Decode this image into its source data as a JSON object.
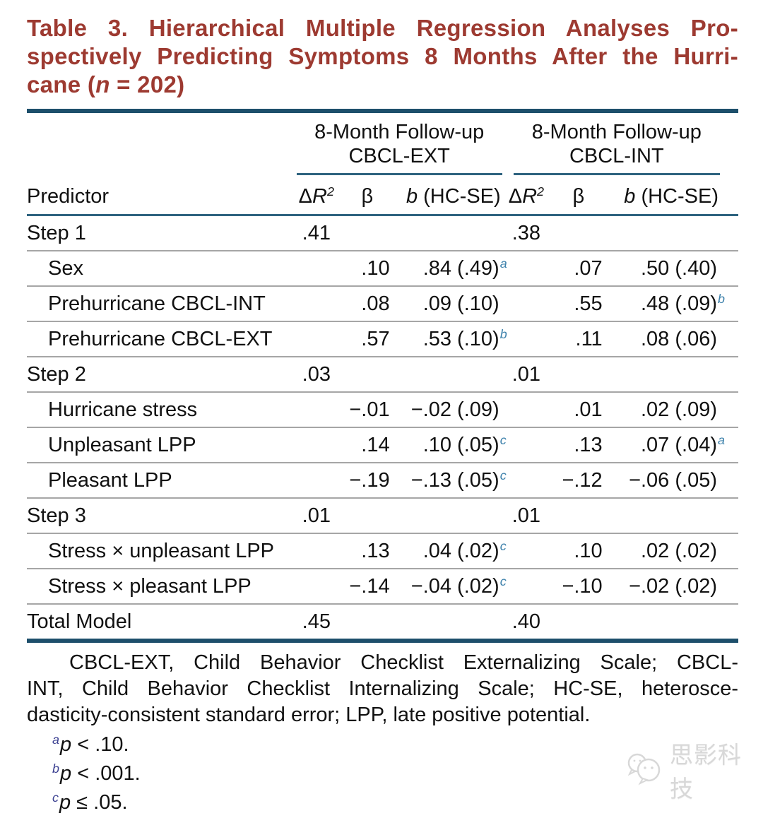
{
  "title": {
    "line1": "Table 3. Hierarchical Multiple Regression Analyses Pro-",
    "line2": "spectively Predicting Symptoms 8 Months After the Hurri-",
    "line3_pre": "cane (",
    "line3_n": "n",
    "line3_post": " = 202)"
  },
  "colors": {
    "title_red": "#9d3a31",
    "rule_teal_thick": "#1d4f6b",
    "rule_teal_thin": "#2e637f",
    "row_divider_gray": "#a6a6a6",
    "table_sup_blue": "#3d81ab",
    "footnote_sup_navy": "#3c4192",
    "watermark_gray": "#d8d8d8"
  },
  "table": {
    "spanners": [
      {
        "line1": "8-Month Follow-up",
        "line2": "CBCL-EXT"
      },
      {
        "line1": "8-Month Follow-up",
        "line2": "CBCL-INT"
      }
    ],
    "subheaders": {
      "predictor": "Predictor",
      "delta": "Δ",
      "r": "R",
      "r_sup": "2",
      "beta": "β",
      "b": "b",
      "b_rest": " (HC-SE)"
    },
    "rows": [
      {
        "label": "Step 1",
        "indent": false,
        "ext": {
          "dr2": ".41",
          "beta": "",
          "b": "",
          "sup": ""
        },
        "int": {
          "dr2": ".38",
          "beta": "",
          "b": "",
          "sup": ""
        }
      },
      {
        "label": "Sex",
        "indent": true,
        "ext": {
          "dr2": "",
          "beta": ".10",
          "b": ".84 (.49)",
          "sup": "a"
        },
        "int": {
          "dr2": "",
          "beta": ".07",
          "b": ".50 (.40)",
          "sup": ""
        }
      },
      {
        "label": "Prehurricane CBCL-INT",
        "indent": true,
        "ext": {
          "dr2": "",
          "beta": ".08",
          "b": ".09 (.10)",
          "sup": ""
        },
        "int": {
          "dr2": "",
          "beta": ".55",
          "b": ".48 (.09)",
          "sup": "b"
        }
      },
      {
        "label": "Prehurricane CBCL-EXT",
        "indent": true,
        "ext": {
          "dr2": "",
          "beta": ".57",
          "b": ".53 (.10)",
          "sup": "b"
        },
        "int": {
          "dr2": "",
          "beta": ".11",
          "b": ".08 (.06)",
          "sup": ""
        }
      },
      {
        "label": "Step 2",
        "indent": false,
        "ext": {
          "dr2": ".03",
          "beta": "",
          "b": "",
          "sup": ""
        },
        "int": {
          "dr2": ".01",
          "beta": "",
          "b": "",
          "sup": ""
        }
      },
      {
        "label": "Hurricane stress",
        "indent": true,
        "ext": {
          "dr2": "",
          "beta": "−.01",
          "b": "−.02 (.09)",
          "sup": ""
        },
        "int": {
          "dr2": "",
          "beta": ".01",
          "b": ".02 (.09)",
          "sup": ""
        }
      },
      {
        "label": "Unpleasant LPP",
        "indent": true,
        "ext": {
          "dr2": "",
          "beta": ".14",
          "b": ".10 (.05)",
          "sup": "c"
        },
        "int": {
          "dr2": "",
          "beta": ".13",
          "b": ".07 (.04)",
          "sup": "a"
        }
      },
      {
        "label": "Pleasant LPP",
        "indent": true,
        "ext": {
          "dr2": "",
          "beta": "−.19",
          "b": "−.13 (.05)",
          "sup": "c"
        },
        "int": {
          "dr2": "",
          "beta": "−.12",
          "b": "−.06 (.05)",
          "sup": ""
        }
      },
      {
        "label": "Step 3",
        "indent": false,
        "ext": {
          "dr2": ".01",
          "beta": "",
          "b": "",
          "sup": ""
        },
        "int": {
          "dr2": ".01",
          "beta": "",
          "b": "",
          "sup": ""
        }
      },
      {
        "label": "Stress × unpleasant LPP",
        "indent": true,
        "ext": {
          "dr2": "",
          "beta": ".13",
          "b": ".04 (.02)",
          "sup": "c"
        },
        "int": {
          "dr2": "",
          "beta": ".10",
          "b": ".02 (.02)",
          "sup": ""
        }
      },
      {
        "label": "Stress × pleasant LPP",
        "indent": true,
        "ext": {
          "dr2": "",
          "beta": "−.14",
          "b": "−.04 (.02)",
          "sup": "c"
        },
        "int": {
          "dr2": "",
          "beta": "−.10",
          "b": "−.02 (.02)",
          "sup": ""
        }
      },
      {
        "label": "Total Model",
        "indent": false,
        "ext": {
          "dr2": ".45",
          "beta": "",
          "b": "",
          "sup": ""
        },
        "int": {
          "dr2": ".40",
          "beta": "",
          "b": "",
          "sup": ""
        }
      }
    ]
  },
  "footnote": {
    "line1": "CBCL-EXT, Child Behavior Checklist Externalizing Scale; CBCL-",
    "line2": "INT, Child Behavior Checklist Internalizing Scale; HC-SE, heterosce-",
    "line3": "dasticity-consistent standard error; LPP, late positive potential.",
    "notes": [
      {
        "sup": "a",
        "p": "p",
        "text": " < .10."
      },
      {
        "sup": "b",
        "p": "p",
        "text": " < .001."
      },
      {
        "sup": "c",
        "p": "p",
        "text": " ≤ .05."
      }
    ]
  },
  "watermark": {
    "text": "思影科技"
  }
}
